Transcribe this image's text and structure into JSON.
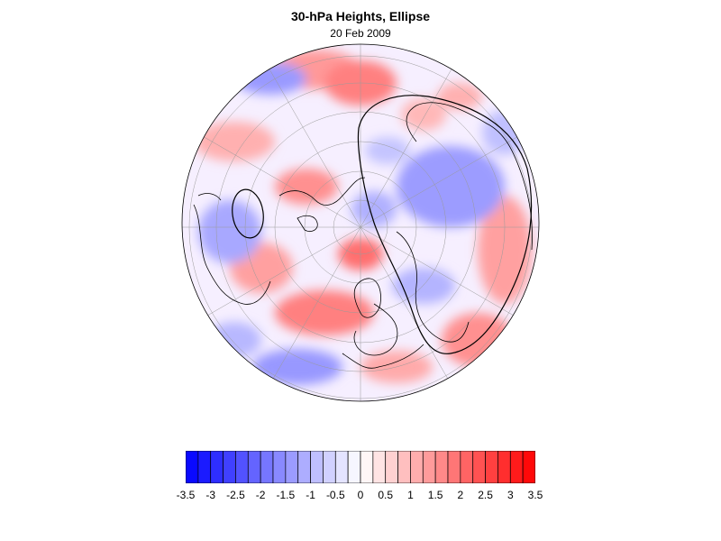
{
  "title": "30-hPa Heights, Ellipse",
  "subtitle": "20 Feb 2009",
  "colorbar": {
    "min": -3.5,
    "max": 3.5,
    "step": 0.25,
    "neg_color": "#0000ff",
    "pos_color": "#ff0000",
    "mid_color": "#ffffff",
    "tick_labels": [
      "-3.5",
      "-3",
      "-2.5",
      "-2",
      "-1.5",
      "-1",
      "-0.5",
      "0",
      "0.5",
      "1",
      "1.5",
      "2",
      "2.5",
      "3",
      "3.5"
    ]
  },
  "map": {
    "projection": "north polar orthographic",
    "features": [
      "coastlines",
      "lat-lon graticule",
      "filled anomaly contours",
      "ellipse outlines"
    ]
  }
}
